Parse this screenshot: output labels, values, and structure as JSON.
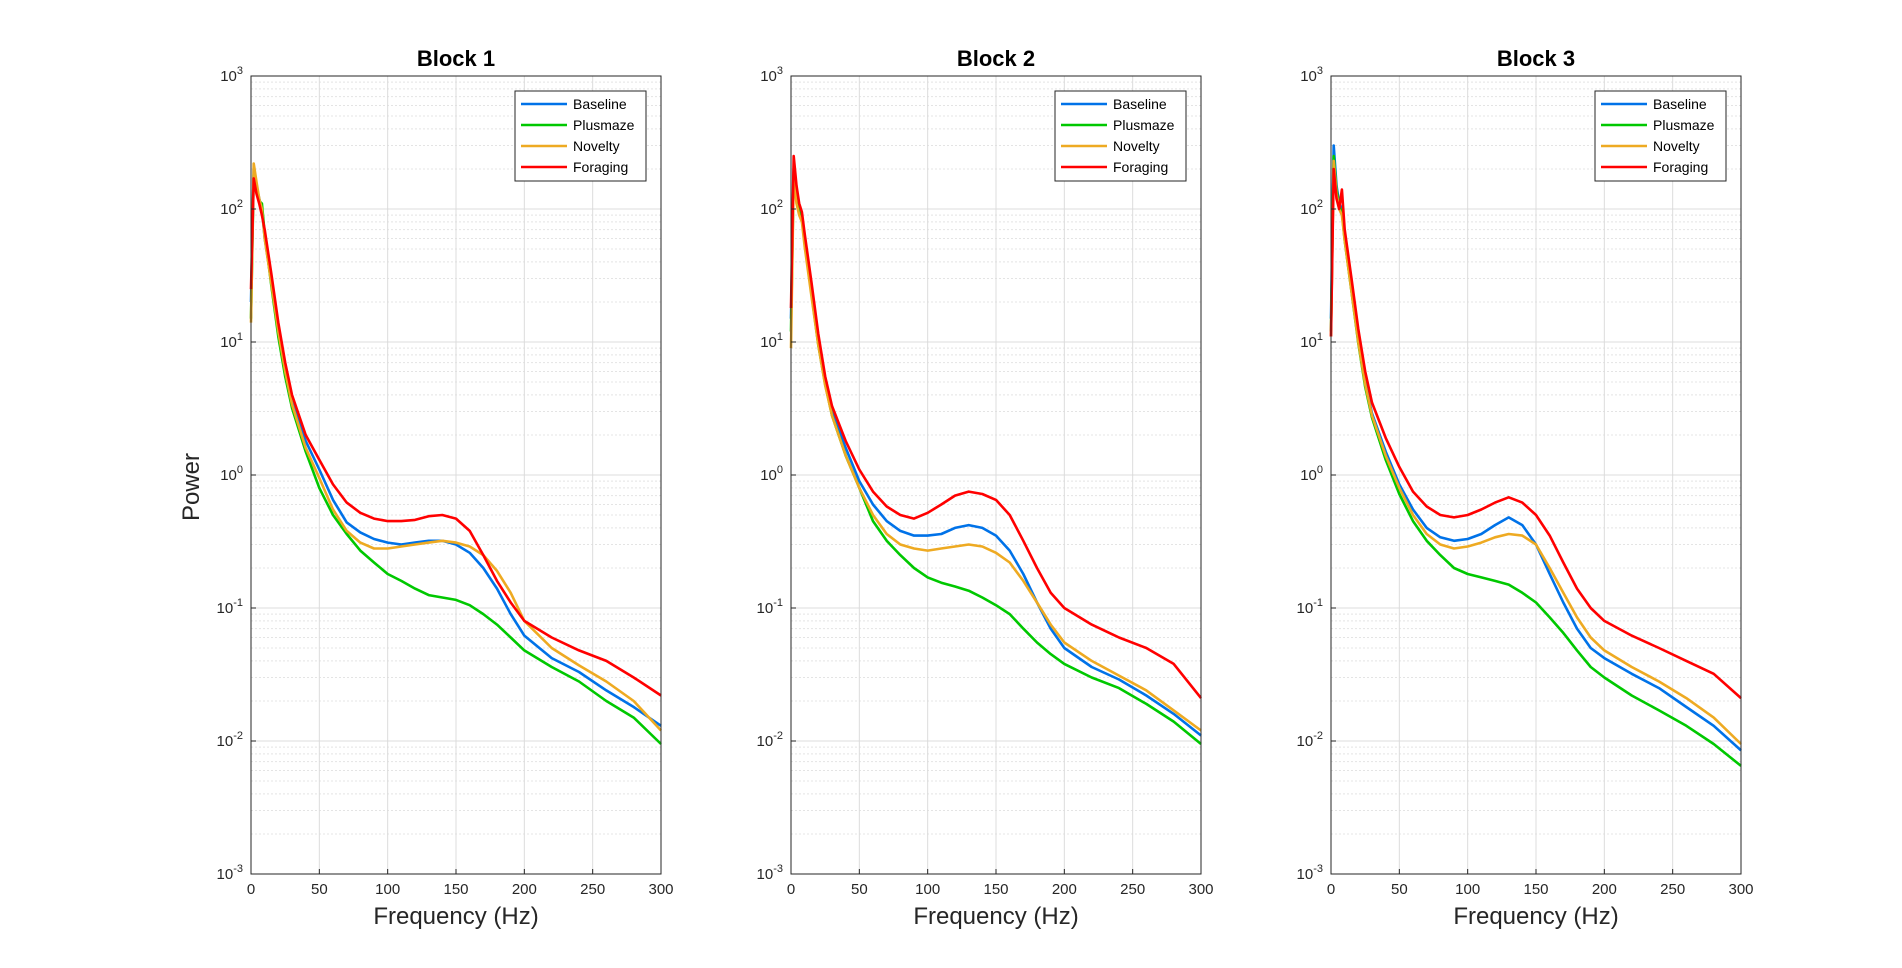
{
  "figure": {
    "y_label": "Power"
  },
  "chart_data": [
    {
      "type": "line",
      "title": "Block 1",
      "xlabel": "Frequency (Hz)",
      "ylabel": "Power",
      "yscale": "log",
      "xlim": [
        0,
        300
      ],
      "ylim": [
        0.001,
        1000
      ],
      "xticks": [
        0,
        50,
        100,
        150,
        200,
        250,
        300
      ],
      "yticks": [
        0.001,
        0.01,
        0.1,
        1,
        10,
        100,
        1000
      ],
      "ytick_labels": [
        {
          "base": "10",
          "exp": "-3"
        },
        {
          "base": "10",
          "exp": "-2"
        },
        {
          "base": "10",
          "exp": "-1"
        },
        {
          "base": "10",
          "exp": "0"
        },
        {
          "base": "10",
          "exp": "1"
        },
        {
          "base": "10",
          "exp": "2"
        },
        {
          "base": "10",
          "exp": "3"
        }
      ],
      "grid": true,
      "legend_position": "top-right",
      "series": [
        {
          "name": "Baseline",
          "color": "#0072e8",
          "x": [
            0,
            2,
            4,
            6,
            8,
            10,
            15,
            20,
            25,
            30,
            40,
            50,
            60,
            70,
            80,
            90,
            100,
            110,
            120,
            130,
            140,
            150,
            160,
            170,
            180,
            190,
            200,
            220,
            240,
            260,
            280,
            300
          ],
          "y": [
            20,
            200,
            150,
            120,
            100,
            60,
            28,
            12,
            6,
            3.5,
            1.8,
            1.1,
            0.65,
            0.44,
            0.37,
            0.33,
            0.31,
            0.3,
            0.31,
            0.32,
            0.32,
            0.3,
            0.26,
            0.2,
            0.14,
            0.09,
            0.062,
            0.042,
            0.033,
            0.024,
            0.018,
            0.013
          ]
        },
        {
          "name": "Plusmaze",
          "color": "#00c800",
          "x": [
            0,
            2,
            4,
            6,
            8,
            10,
            15,
            20,
            25,
            30,
            40,
            50,
            60,
            70,
            80,
            90,
            100,
            110,
            120,
            130,
            140,
            150,
            160,
            170,
            180,
            190,
            200,
            220,
            240,
            260,
            280,
            300
          ],
          "y": [
            15,
            180,
            140,
            115,
            110,
            65,
            26,
            11,
            5.5,
            3.2,
            1.5,
            0.8,
            0.5,
            0.36,
            0.27,
            0.22,
            0.18,
            0.16,
            0.14,
            0.125,
            0.12,
            0.115,
            0.105,
            0.09,
            0.075,
            0.06,
            0.048,
            0.036,
            0.028,
            0.02,
            0.015,
            0.0095
          ]
        },
        {
          "name": "Novelty",
          "color": "#eeaa22",
          "x": [
            0,
            2,
            4,
            6,
            8,
            10,
            15,
            20,
            25,
            30,
            40,
            50,
            60,
            70,
            80,
            90,
            100,
            110,
            120,
            130,
            140,
            150,
            160,
            170,
            180,
            190,
            200,
            220,
            240,
            260,
            280,
            300
          ],
          "y": [
            14,
            220,
            160,
            120,
            100,
            60,
            27,
            12,
            6,
            3.4,
            1.6,
            0.95,
            0.55,
            0.38,
            0.31,
            0.28,
            0.28,
            0.29,
            0.3,
            0.31,
            0.32,
            0.31,
            0.29,
            0.25,
            0.19,
            0.13,
            0.08,
            0.05,
            0.037,
            0.028,
            0.02,
            0.012
          ]
        },
        {
          "name": "Foraging",
          "color": "#ff0000",
          "x": [
            0,
            2,
            4,
            6,
            8,
            10,
            15,
            20,
            25,
            30,
            40,
            50,
            60,
            70,
            80,
            90,
            100,
            110,
            120,
            130,
            140,
            150,
            160,
            170,
            180,
            190,
            200,
            220,
            240,
            260,
            280,
            300
          ],
          "y": [
            25,
            170,
            130,
            110,
            90,
            70,
            32,
            14,
            7,
            4,
            2,
            1.3,
            0.85,
            0.62,
            0.52,
            0.47,
            0.45,
            0.45,
            0.46,
            0.49,
            0.5,
            0.47,
            0.38,
            0.25,
            0.16,
            0.11,
            0.08,
            0.06,
            0.048,
            0.04,
            0.03,
            0.022
          ]
        }
      ]
    },
    {
      "type": "line",
      "title": "Block 2",
      "xlabel": "Frequency (Hz)",
      "yscale": "log",
      "xlim": [
        0,
        300
      ],
      "ylim": [
        0.001,
        1000
      ],
      "xticks": [
        0,
        50,
        100,
        150,
        200,
        250,
        300
      ],
      "yticks": [
        0.001,
        0.01,
        0.1,
        1,
        10,
        100,
        1000
      ],
      "ytick_labels": [
        {
          "base": "10",
          "exp": "-3"
        },
        {
          "base": "10",
          "exp": "-2"
        },
        {
          "base": "10",
          "exp": "-1"
        },
        {
          "base": "10",
          "exp": "0"
        },
        {
          "base": "10",
          "exp": "1"
        },
        {
          "base": "10",
          "exp": "2"
        },
        {
          "base": "10",
          "exp": "3"
        }
      ],
      "grid": true,
      "legend_position": "top-right",
      "series": [
        {
          "name": "Baseline",
          "color": "#0072e8",
          "x": [
            0,
            2,
            4,
            6,
            8,
            10,
            15,
            20,
            25,
            30,
            40,
            50,
            60,
            70,
            80,
            90,
            100,
            110,
            120,
            130,
            140,
            150,
            160,
            170,
            180,
            190,
            200,
            220,
            240,
            260,
            280,
            300
          ],
          "y": [
            15,
            200,
            130,
            100,
            90,
            60,
            25,
            10,
            5,
            3,
            1.6,
            0.9,
            0.6,
            0.45,
            0.38,
            0.35,
            0.35,
            0.36,
            0.4,
            0.42,
            0.4,
            0.35,
            0.27,
            0.18,
            0.11,
            0.07,
            0.05,
            0.036,
            0.029,
            0.022,
            0.016,
            0.011
          ]
        },
        {
          "name": "Plusmaze",
          "color": "#00c800",
          "x": [
            0,
            2,
            4,
            6,
            8,
            10,
            15,
            20,
            25,
            30,
            40,
            50,
            60,
            70,
            80,
            90,
            100,
            110,
            120,
            130,
            140,
            150,
            160,
            170,
            180,
            190,
            200,
            220,
            240,
            260,
            280,
            300
          ],
          "y": [
            12,
            190,
            120,
            95,
            85,
            55,
            23,
            9.5,
            4.8,
            2.8,
            1.4,
            0.8,
            0.45,
            0.32,
            0.25,
            0.2,
            0.17,
            0.155,
            0.145,
            0.135,
            0.12,
            0.105,
            0.09,
            0.07,
            0.055,
            0.045,
            0.038,
            0.03,
            0.025,
            0.019,
            0.014,
            0.0095
          ]
        },
        {
          "name": "Novelty",
          "color": "#eeaa22",
          "x": [
            0,
            2,
            4,
            6,
            8,
            10,
            15,
            20,
            25,
            30,
            40,
            50,
            60,
            70,
            80,
            90,
            100,
            110,
            120,
            130,
            140,
            150,
            160,
            170,
            180,
            190,
            200,
            220,
            240,
            260,
            280,
            300
          ],
          "y": [
            9,
            180,
            110,
            90,
            80,
            52,
            22,
            9.5,
            4.7,
            2.8,
            1.4,
            0.8,
            0.5,
            0.36,
            0.3,
            0.28,
            0.27,
            0.28,
            0.29,
            0.3,
            0.29,
            0.26,
            0.22,
            0.16,
            0.11,
            0.075,
            0.055,
            0.04,
            0.031,
            0.024,
            0.017,
            0.012
          ]
        },
        {
          "name": "Foraging",
          "color": "#ff0000",
          "x": [
            0,
            2,
            4,
            6,
            8,
            10,
            15,
            20,
            25,
            30,
            40,
            50,
            60,
            70,
            80,
            90,
            100,
            110,
            120,
            130,
            140,
            150,
            160,
            170,
            180,
            190,
            200,
            220,
            240,
            260,
            280,
            300
          ],
          "y": [
            18,
            250,
            150,
            110,
            95,
            65,
            28,
            11.5,
            5.5,
            3.3,
            1.8,
            1.1,
            0.75,
            0.58,
            0.5,
            0.47,
            0.52,
            0.6,
            0.7,
            0.75,
            0.72,
            0.65,
            0.5,
            0.32,
            0.2,
            0.13,
            0.1,
            0.075,
            0.06,
            0.05,
            0.038,
            0.021
          ]
        }
      ]
    },
    {
      "type": "line",
      "title": "Block 3",
      "xlabel": "Frequency (Hz)",
      "yscale": "log",
      "xlim": [
        0,
        300
      ],
      "ylim": [
        0.001,
        1000
      ],
      "xticks": [
        0,
        50,
        100,
        150,
        200,
        250,
        300
      ],
      "yticks": [
        0.001,
        0.01,
        0.1,
        1,
        10,
        100,
        1000
      ],
      "ytick_labels": [
        {
          "base": "10",
          "exp": "-3"
        },
        {
          "base": "10",
          "exp": "-2"
        },
        {
          "base": "10",
          "exp": "-1"
        },
        {
          "base": "10",
          "exp": "0"
        },
        {
          "base": "10",
          "exp": "1"
        },
        {
          "base": "10",
          "exp": "2"
        },
        {
          "base": "10",
          "exp": "3"
        }
      ],
      "grid": true,
      "legend_position": "top-right",
      "series": [
        {
          "name": "Baseline",
          "color": "#0072e8",
          "x": [
            0,
            2,
            4,
            6,
            8,
            10,
            15,
            20,
            25,
            30,
            40,
            50,
            60,
            70,
            80,
            90,
            100,
            110,
            120,
            130,
            140,
            150,
            160,
            170,
            180,
            190,
            200,
            220,
            240,
            260,
            280,
            300
          ],
          "y": [
            15,
            300,
            150,
            110,
            100,
            62,
            26,
            10.5,
            5,
            2.9,
            1.5,
            0.85,
            0.55,
            0.4,
            0.34,
            0.32,
            0.33,
            0.36,
            0.42,
            0.48,
            0.42,
            0.3,
            0.18,
            0.11,
            0.07,
            0.05,
            0.042,
            0.032,
            0.025,
            0.018,
            0.013,
            0.0085
          ]
        },
        {
          "name": "Plusmaze",
          "color": "#00c800",
          "x": [
            0,
            2,
            4,
            6,
            8,
            10,
            15,
            20,
            25,
            30,
            40,
            50,
            60,
            70,
            80,
            90,
            100,
            110,
            120,
            130,
            140,
            150,
            160,
            170,
            180,
            190,
            200,
            220,
            240,
            260,
            280,
            300
          ],
          "y": [
            12,
            250,
            140,
            105,
            95,
            58,
            24,
            9.8,
            4.6,
            2.7,
            1.3,
            0.72,
            0.45,
            0.32,
            0.25,
            0.2,
            0.18,
            0.17,
            0.16,
            0.15,
            0.13,
            0.11,
            0.085,
            0.065,
            0.048,
            0.036,
            0.03,
            0.022,
            0.017,
            0.013,
            0.0095,
            0.0065
          ]
        },
        {
          "name": "Novelty",
          "color": "#eeaa22",
          "x": [
            0,
            2,
            4,
            6,
            8,
            10,
            15,
            20,
            25,
            30,
            40,
            50,
            60,
            70,
            80,
            90,
            100,
            110,
            120,
            130,
            140,
            150,
            160,
            170,
            180,
            190,
            200,
            220,
            240,
            260,
            280,
            300
          ],
          "y": [
            11,
            230,
            130,
            100,
            90,
            58,
            24,
            10,
            4.8,
            2.8,
            1.4,
            0.8,
            0.5,
            0.36,
            0.3,
            0.28,
            0.29,
            0.31,
            0.34,
            0.36,
            0.35,
            0.3,
            0.2,
            0.13,
            0.085,
            0.06,
            0.048,
            0.036,
            0.028,
            0.021,
            0.015,
            0.0095
          ]
        },
        {
          "name": "Foraging",
          "color": "#ff0000",
          "x": [
            0,
            2,
            4,
            6,
            8,
            10,
            15,
            20,
            25,
            30,
            40,
            50,
            60,
            70,
            80,
            90,
            100,
            110,
            120,
            130,
            140,
            150,
            160,
            170,
            180,
            190,
            200,
            220,
            240,
            260,
            280,
            300
          ],
          "y": [
            11,
            200,
            120,
            100,
            140,
            70,
            30,
            12.5,
            6,
            3.5,
            1.9,
            1.15,
            0.75,
            0.58,
            0.5,
            0.48,
            0.5,
            0.55,
            0.62,
            0.68,
            0.62,
            0.5,
            0.35,
            0.22,
            0.14,
            0.1,
            0.08,
            0.062,
            0.05,
            0.04,
            0.032,
            0.021
          ]
        }
      ]
    }
  ]
}
